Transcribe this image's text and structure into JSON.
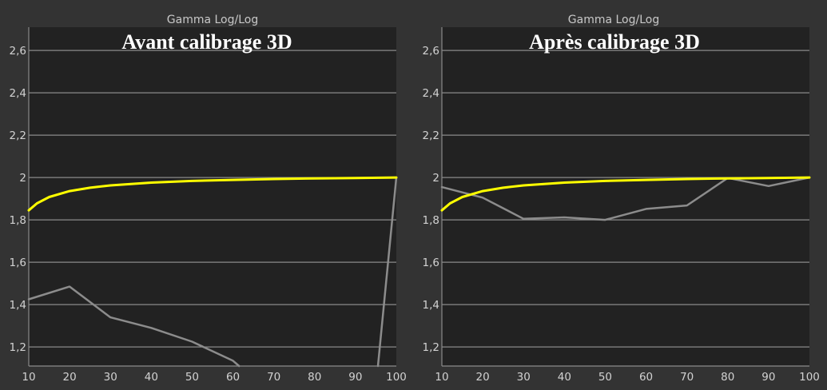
{
  "colors": {
    "page_background": "#333333",
    "plot_background": "#222222",
    "gridline": "#8a8a8a",
    "reference_curve": "#ffff00",
    "measured_curve": "#8c8c8c",
    "text": "#d2d2d2"
  },
  "chart_data": [
    {
      "type": "line",
      "title": "Gamma Log/Log",
      "overlay_title": "Avant calibrage 3D",
      "xlim": [
        10,
        100
      ],
      "ylim": [
        1.11,
        2.71
      ],
      "x_ticks": [
        "10",
        "20",
        "30",
        "40",
        "50",
        "60",
        "70",
        "80",
        "90",
        "100"
      ],
      "y_ticks": [
        "1,2",
        "1,4",
        "1,6",
        "1,8",
        "2",
        "2,2",
        "2,4",
        "2,6"
      ],
      "grid": true,
      "series": [
        {
          "role": "reference",
          "color": "#ffff00",
          "x": [
            10,
            12,
            15,
            20,
            25,
            30,
            40,
            50,
            60,
            70,
            80,
            90,
            100
          ],
          "y": [
            1.845,
            1.878,
            1.908,
            1.936,
            1.952,
            1.963,
            1.976,
            1.984,
            1.989,
            1.993,
            1.996,
            1.998,
            2.0
          ]
        },
        {
          "role": "measured",
          "color": "#8c8c8c",
          "x": [
            10,
            20,
            30,
            40,
            50,
            60,
            61.5
          ],
          "y": [
            1.425,
            1.485,
            1.34,
            1.29,
            1.225,
            1.135,
            1.11
          ]
        },
        {
          "role": "measured",
          "color": "#8c8c8c",
          "x": [
            95.5,
            100
          ],
          "y": [
            1.11,
            2.0
          ]
        }
      ]
    },
    {
      "type": "line",
      "title": "Gamma Log/Log",
      "overlay_title": "Après calibrage 3D",
      "xlim": [
        10,
        100
      ],
      "ylim": [
        1.11,
        2.71
      ],
      "x_ticks": [
        "10",
        "20",
        "30",
        "40",
        "50",
        "60",
        "70",
        "80",
        "90",
        "100"
      ],
      "y_ticks": [
        "1,2",
        "1,4",
        "1,6",
        "1,8",
        "2",
        "2,2",
        "2,4",
        "2,6"
      ],
      "grid": true,
      "series": [
        {
          "role": "reference",
          "color": "#ffff00",
          "x": [
            10,
            12,
            15,
            20,
            25,
            30,
            40,
            50,
            60,
            70,
            80,
            90,
            100
          ],
          "y": [
            1.845,
            1.878,
            1.908,
            1.936,
            1.952,
            1.963,
            1.976,
            1.984,
            1.989,
            1.993,
            1.996,
            1.998,
            2.0
          ]
        },
        {
          "role": "measured",
          "color": "#8c8c8c",
          "x": [
            10,
            20,
            30,
            40,
            50,
            60,
            70,
            80,
            90,
            100
          ],
          "y": [
            1.955,
            1.905,
            1.805,
            1.812,
            1.8,
            1.852,
            1.868,
            1.998,
            1.96,
            2.0
          ]
        }
      ]
    }
  ]
}
